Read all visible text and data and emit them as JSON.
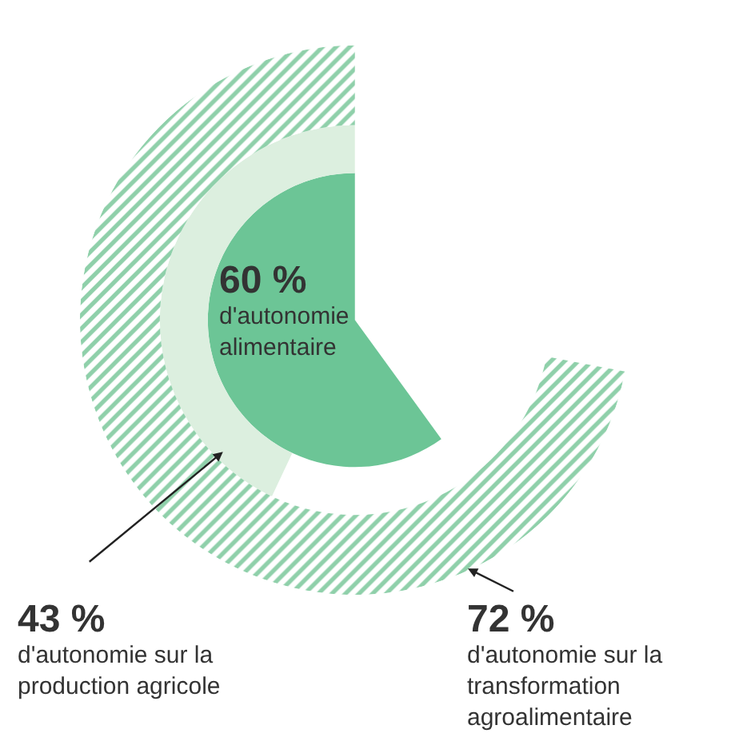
{
  "chart_data": {
    "type": "other",
    "categories": [
      "d'autonomie alimentaire",
      "d'autonomie sur la production agricole",
      "d'autonomie sur la transformation agroalimentaire"
    ],
    "values": [
      60,
      43,
      72
    ],
    "value_labels": [
      "60 %",
      "43 %",
      "72 %"
    ],
    "colors": [
      "#6cc596",
      "#dcefdf",
      "#8fd0aa"
    ]
  }
}
